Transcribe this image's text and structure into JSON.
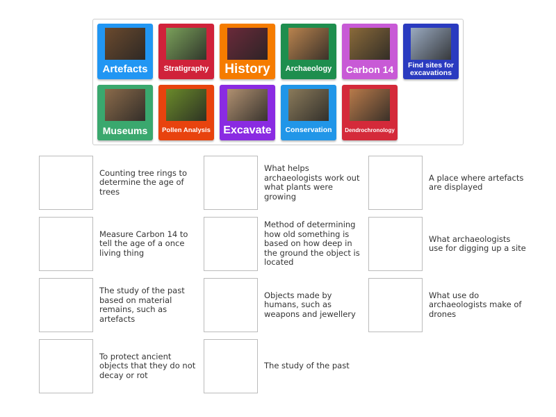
{
  "tiles": [
    {
      "label": "Artefacts",
      "color": "#2196f3",
      "img": "#6b4a2e",
      "size": 15
    },
    {
      "label": "Stratigraphy",
      "color": "#d0223a",
      "img": "#7aa05a",
      "size": 11
    },
    {
      "label": "History",
      "color": "#f57c00",
      "img": "#6a2a3a",
      "size": 19
    },
    {
      "label": "Archaeology",
      "color": "#1e8e4e",
      "img": "#b9834e",
      "size": 11
    },
    {
      "label": "Carbon 14",
      "color": "#c85ad6",
      "img": "#8a6a3a",
      "size": 14
    },
    {
      "label": "Find sites for excavations",
      "color": "#2a3bc0",
      "img": "#9aaac0",
      "size": 10.5
    },
    {
      "label": "Museums",
      "color": "#3aa86e",
      "img": "#8a6a4a",
      "size": 14
    },
    {
      "label": "Pollen Analysis",
      "color": "#e8430e",
      "img": "#6a8a2a",
      "size": 9.5
    },
    {
      "label": "Excavate",
      "color": "#8a2be2",
      "img": "#b09070",
      "size": 16
    },
    {
      "label": "Conservation",
      "color": "#2196e8",
      "img": "#8a7a5a",
      "size": 10.5
    },
    {
      "label": "Dendrochronology",
      "color": "#d42a3a",
      "img": "#b87a4a",
      "size": 8
    }
  ],
  "clues": [
    "Counting tree rings to determine the age of trees",
    "Measure Carbon 14 to tell the age of a once living thing",
    "The study of the past based on material remains, such as artefacts",
    "To protect ancient objects that they do not decay or rot",
    "What helps archaeologists work out what plants were growing",
    "Method of determining how old something is based on how deep in the ground the object is located",
    "Objects made by humans, such as weapons and jewellery",
    "The study of the past",
    "A place where artefacts are displayed",
    "What archaeologists use for digging up a site",
    "What use do archaeologists make of drones"
  ]
}
